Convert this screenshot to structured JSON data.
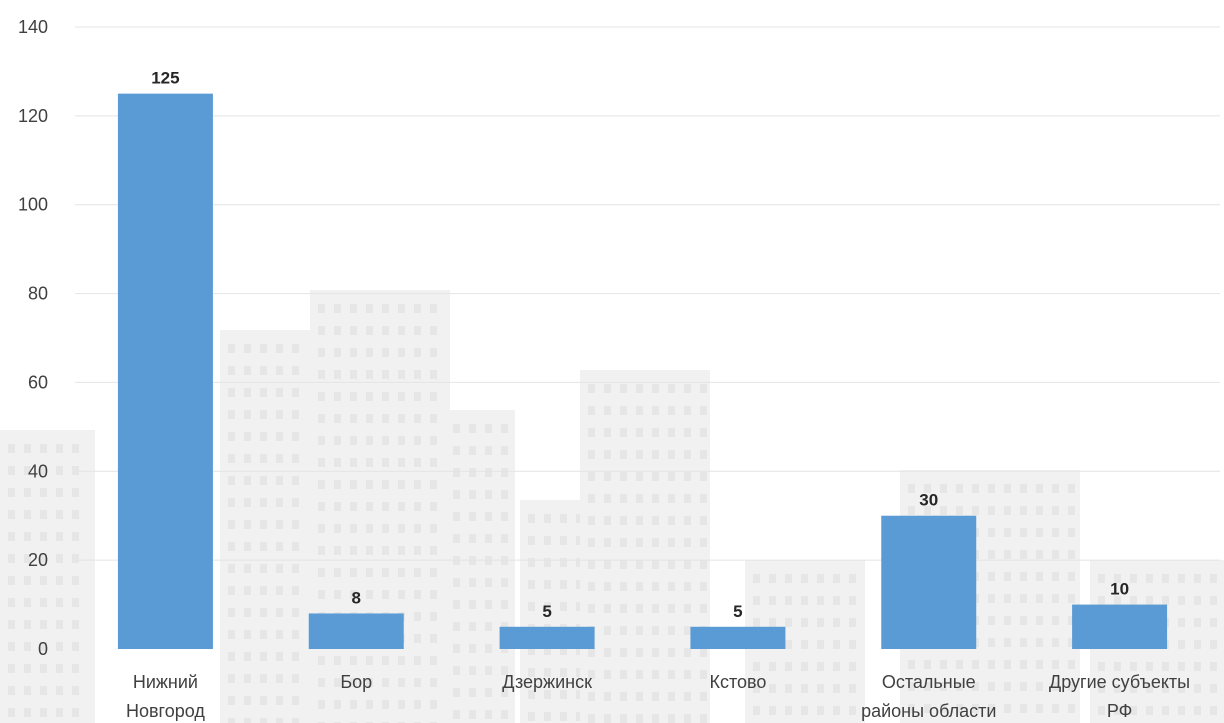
{
  "chart_data": {
    "type": "bar",
    "title": "",
    "xlabel": "",
    "ylabel": "",
    "categories": [
      [
        "Нижний",
        "Новгород"
      ],
      [
        "Бор"
      ],
      [
        "Дзержинск"
      ],
      [
        "Кстово"
      ],
      [
        "Остальные",
        "районы области"
      ],
      [
        "Другие субъекты",
        "РФ"
      ]
    ],
    "values": [
      125,
      8,
      5,
      5,
      30,
      10
    ],
    "data_labels": [
      "125",
      "8",
      "5",
      "5",
      "30",
      "10"
    ],
    "ylim": [
      0,
      140
    ],
    "yticks": [
      0,
      20,
      40,
      60,
      80,
      100,
      120,
      140
    ],
    "grid": true,
    "legend": "none",
    "colors": {
      "bar": "#5b9bd5",
      "grid": "#e4e4e4",
      "text": "#404040"
    }
  }
}
